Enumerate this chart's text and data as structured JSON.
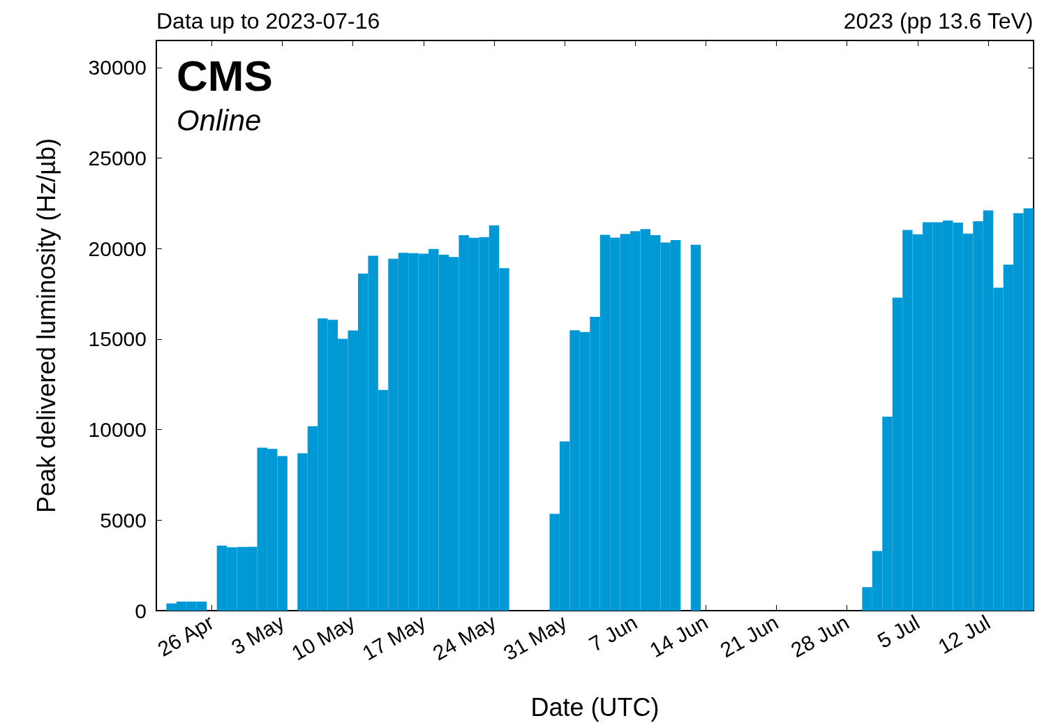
{
  "chart_data": {
    "type": "bar",
    "title": "CMS",
    "subtitle": "Online",
    "xlabel": "Date (UTC)",
    "ylabel": "Peak delivered luminosity (Hz/µb)",
    "annotations": [
      "Data up to 2023-07-16",
      "2023 (pp 13.6 TeV)"
    ],
    "x": [
      "2023-04-22",
      "2023-04-23",
      "2023-04-24",
      "2023-04-25",
      "2023-04-27",
      "2023-04-28",
      "2023-04-29",
      "2023-04-30",
      "2023-05-01",
      "2023-05-02",
      "2023-05-03",
      "2023-05-05",
      "2023-05-06",
      "2023-05-07",
      "2023-05-08",
      "2023-05-09",
      "2023-05-10",
      "2023-05-11",
      "2023-05-12",
      "2023-05-13",
      "2023-05-14",
      "2023-05-15",
      "2023-05-16",
      "2023-05-17",
      "2023-05-18",
      "2023-05-19",
      "2023-05-20",
      "2023-05-21",
      "2023-05-22",
      "2023-05-23",
      "2023-05-24",
      "2023-05-25",
      "2023-05-30",
      "2023-05-31",
      "2023-06-01",
      "2023-06-02",
      "2023-06-03",
      "2023-06-04",
      "2023-06-05",
      "2023-06-06",
      "2023-06-07",
      "2023-06-08",
      "2023-06-09",
      "2023-06-10",
      "2023-06-11",
      "2023-06-13",
      "2023-06-30",
      "2023-07-01",
      "2023-07-02",
      "2023-07-03",
      "2023-07-04",
      "2023-07-05",
      "2023-07-06",
      "2023-07-07",
      "2023-07-08",
      "2023-07-09",
      "2023-07-10",
      "2023-07-11",
      "2023-07-12",
      "2023-07-13",
      "2023-07-14",
      "2023-07-15",
      "2023-07-16"
    ],
    "values": [
      400,
      500,
      500,
      500,
      3600,
      3500,
      3520,
      3530,
      9000,
      8940,
      8540,
      8690,
      10190,
      16150,
      16070,
      15020,
      15480,
      18620,
      19610,
      12190,
      19440,
      19770,
      19750,
      19720,
      19980,
      19660,
      19540,
      20740,
      20600,
      20640,
      21280,
      18920,
      5350,
      9350,
      15490,
      15390,
      16230,
      20760,
      20610,
      20810,
      20960,
      21080,
      20740,
      20340,
      20470,
      20210,
      1300,
      3300,
      10720,
      17290,
      21030,
      20790,
      21460,
      21460,
      21550,
      21440,
      20830,
      21510,
      22110,
      17840,
      19110,
      21960,
      22230
    ],
    "color": "#0099d5",
    "xlim": [
      "2023-04-20T12:00",
      "2023-07-16T12:00"
    ],
    "xticks": [
      {
        "value": "2023-04-26",
        "label": "26 Apr"
      },
      {
        "value": "2023-05-03",
        "label": "3 May"
      },
      {
        "value": "2023-05-10",
        "label": "10 May"
      },
      {
        "value": "2023-05-17",
        "label": "17 May"
      },
      {
        "value": "2023-05-24",
        "label": "24 May"
      },
      {
        "value": "2023-05-31",
        "label": "31 May"
      },
      {
        "value": "2023-06-07",
        "label": "7 Jun"
      },
      {
        "value": "2023-06-14",
        "label": "14 Jun"
      },
      {
        "value": "2023-06-21",
        "label": "21 Jun"
      },
      {
        "value": "2023-06-28",
        "label": "28 Jun"
      },
      {
        "value": "2023-07-05",
        "label": "5 Jul"
      },
      {
        "value": "2023-07-12",
        "label": "12 Jul"
      }
    ],
    "ylim": [
      0,
      31500
    ],
    "yticks": [
      0,
      5000,
      10000,
      15000,
      20000,
      25000,
      30000
    ],
    "grid": false
  }
}
